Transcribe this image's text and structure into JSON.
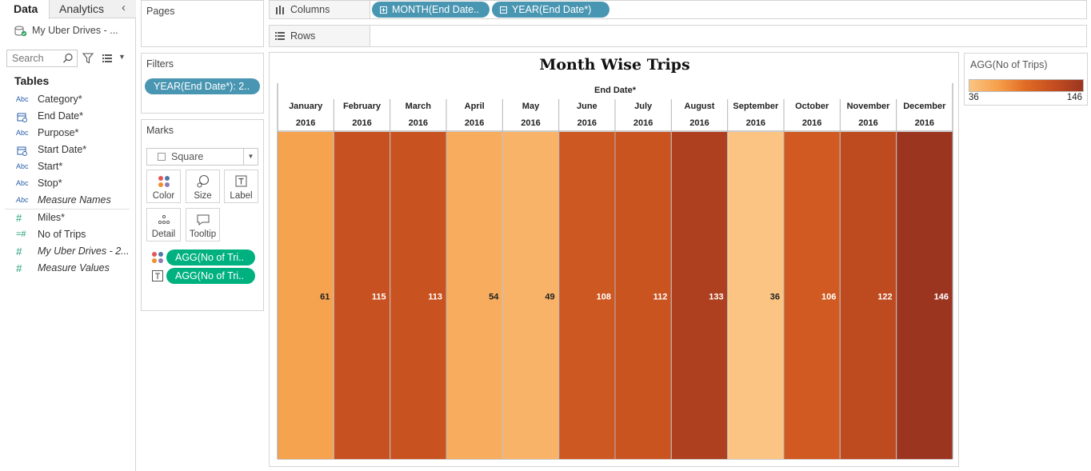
{
  "data_pane": {
    "tabs": [
      {
        "label": "Data"
      },
      {
        "label": "Analytics"
      }
    ],
    "datasource": "My Uber Drives - ...",
    "search_placeholder": "Search",
    "tables_heading": "Tables",
    "dimensions": [
      {
        "type": "Abc",
        "name": "Category*"
      },
      {
        "type": "date",
        "name": "End Date*"
      },
      {
        "type": "Abc",
        "name": "Purpose*"
      },
      {
        "type": "date",
        "name": "Start Date*"
      },
      {
        "type": "Abc",
        "name": "Start*"
      },
      {
        "type": "Abc",
        "name": "Stop*"
      },
      {
        "type": "Abc",
        "name": "Measure Names"
      }
    ],
    "measures": [
      {
        "type": "#",
        "name": "Miles*"
      },
      {
        "type": "calc#",
        "name": "No of Trips"
      },
      {
        "type": "#",
        "name": "My Uber Drives - 2..."
      },
      {
        "type": "#",
        "name": "Measure Values"
      }
    ]
  },
  "pages": {
    "title": "Pages"
  },
  "filters": {
    "title": "Filters",
    "pills": [
      "YEAR(End Date*): 2.."
    ]
  },
  "marks": {
    "title": "Marks",
    "mark_type": "Square",
    "buttons": [
      {
        "label": "Color",
        "icon": "color-dots-icon"
      },
      {
        "label": "Size",
        "icon": "size-icon"
      },
      {
        "label": "Label",
        "icon": "label-icon"
      },
      {
        "label": "Detail",
        "icon": "detail-dots-icon"
      },
      {
        "label": "Tooltip",
        "icon": "tooltip-icon"
      }
    ],
    "pills": [
      {
        "icon": "color-dots-icon",
        "label": "AGG(No of Tri.."
      },
      {
        "icon": "label-icon",
        "label": "AGG(No of Tri.."
      }
    ]
  },
  "columns": {
    "label": "Columns",
    "pills": [
      "MONTH(End Date..",
      "YEAR(End Date*)"
    ]
  },
  "rows": {
    "label": "Rows"
  },
  "legend": {
    "title": "AGG(No of Trips)",
    "min": "36",
    "max": "146"
  },
  "chart_data": {
    "type": "heatmap",
    "title": "Month Wise Trips",
    "header_label": "End Date*",
    "categories": [
      "January",
      "February",
      "March",
      "April",
      "May",
      "June",
      "July",
      "August",
      "September",
      "October",
      "November",
      "December"
    ],
    "years": [
      "2016",
      "2016",
      "2016",
      "2016",
      "2016",
      "2016",
      "2016",
      "2016",
      "2016",
      "2016",
      "2016",
      "2016"
    ],
    "values": [
      61,
      115,
      113,
      54,
      49,
      108,
      112,
      133,
      36,
      106,
      122,
      146
    ],
    "color_range": [
      36,
      146
    ],
    "color_stops": [
      "#fbc483",
      "#f6a04a",
      "#e06a24",
      "#c34d1f",
      "#9c3520"
    ]
  }
}
